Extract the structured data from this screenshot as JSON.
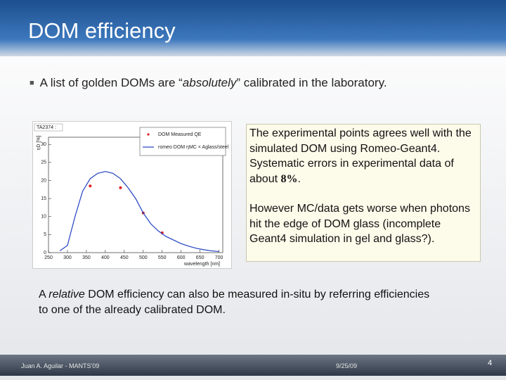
{
  "header": {
    "title": "DOM efficiency"
  },
  "bullet": {
    "before": "A list of golden DOMs are “",
    "italic": "absolutely",
    "after": "” calibrated in the laboratory."
  },
  "note": {
    "p1_before": "The experimental points agrees well with the simulated DOM using Romeo-Geant4. Systematic errors in experimental data of about ",
    "p1_bold": "8%",
    "p1_after": ".",
    "p2": "However MC/data gets worse when photons hit the edge of DOM glass (incomplete Geant4 simulation in gel and glass?)."
  },
  "body": {
    "before": "A ",
    "italic": "relative",
    "after": " DOM efficiency can also be measured in-situ by referring efficiencies to one of the already calibrated DOM."
  },
  "footer": {
    "author": "Juan A. Aguilar - MANTS'09",
    "date": "9/25/09",
    "page": "4"
  },
  "chart_data": {
    "type": "line",
    "title": "TA2374 :",
    "ylabel": "ηD [%]",
    "xlabel": "wavelength [nm]",
    "xlim": [
      250,
      710
    ],
    "xticks": [
      250,
      300,
      350,
      400,
      450,
      500,
      550,
      600,
      650,
      700
    ],
    "ylim": [
      0,
      32
    ],
    "yticks": [
      0,
      5,
      10,
      15,
      20,
      25,
      30
    ],
    "grid": false,
    "series": [
      {
        "name": "DOM Measured QE",
        "color": "#e02020",
        "kind": "scatter",
        "x": [
          360,
          440,
          500,
          550
        ],
        "values": [
          18.5,
          18,
          11,
          5.5
        ]
      },
      {
        "name": "romeo DOM ηMC × Aglass/steel",
        "color": "#2040c0",
        "kind": "line",
        "x": [
          280,
          300,
          320,
          340,
          360,
          380,
          400,
          420,
          440,
          460,
          480,
          500,
          520,
          540,
          560,
          580,
          600,
          620,
          640,
          660,
          680,
          700
        ],
        "values": [
          0.5,
          2,
          10,
          17,
          20.5,
          22,
          22.5,
          22,
          20.5,
          18,
          15,
          11,
          8,
          6,
          4.5,
          3.5,
          2.5,
          1.8,
          1.2,
          0.8,
          0.5,
          0.3
        ]
      }
    ]
  }
}
